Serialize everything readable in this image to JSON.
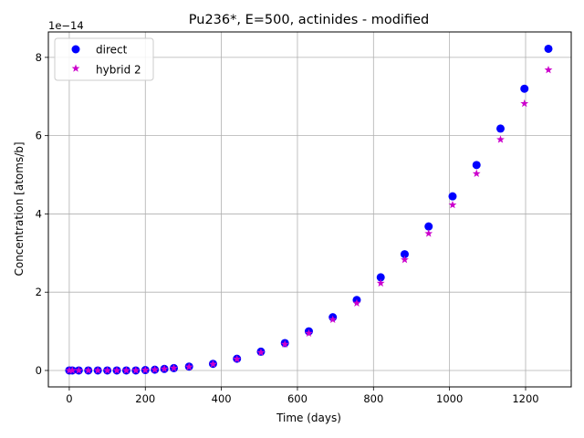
{
  "chart_data": {
    "type": "scatter",
    "title": "Pu236*, E=500, actinides - modified",
    "xlabel": "Time (days)",
    "ylabel": "Concentration [atoms/b]",
    "y_offset_label": "1e−14",
    "xlim": [
      -55,
      1320
    ],
    "ylim": [
      -0.42,
      8.65
    ],
    "y_scale_factor": 1e-14,
    "xticks": [
      0,
      200,
      400,
      600,
      800,
      1000,
      1200
    ],
    "yticks": [
      0,
      2,
      4,
      6,
      8
    ],
    "grid": true,
    "legend_position": "upper left",
    "series": [
      {
        "name": "direct",
        "marker": "circle",
        "color": "#0000ff",
        "x": [
          0,
          8,
          25,
          50,
          75,
          100,
          125,
          150,
          175,
          200,
          225,
          250,
          275,
          315,
          378,
          441,
          504,
          567,
          630,
          693,
          756,
          819,
          882,
          945,
          1008,
          1071,
          1134,
          1197,
          1260
        ],
        "y": [
          0,
          0,
          0,
          0,
          0,
          0,
          0,
          0,
          0,
          0.01,
          0.02,
          0.04,
          0.06,
          0.1,
          0.17,
          0.3,
          0.48,
          0.7,
          1.0,
          1.36,
          1.8,
          2.38,
          2.97,
          3.68,
          4.45,
          5.25,
          6.18,
          7.2,
          8.22
        ]
      },
      {
        "name": "hybrid 2",
        "marker": "star",
        "color": "#cc00cc",
        "x": [
          0,
          8,
          25,
          50,
          75,
          100,
          125,
          150,
          175,
          200,
          225,
          250,
          275,
          315,
          378,
          441,
          504,
          567,
          630,
          693,
          756,
          819,
          882,
          945,
          1008,
          1071,
          1134,
          1197,
          1260
        ],
        "y": [
          0,
          0,
          0,
          0,
          0,
          0,
          0,
          0,
          0,
          0.01,
          0.02,
          0.04,
          0.06,
          0.09,
          0.16,
          0.29,
          0.46,
          0.67,
          0.95,
          1.3,
          1.72,
          2.23,
          2.83,
          3.5,
          4.23,
          5.03,
          5.9,
          6.82,
          7.68
        ]
      }
    ]
  }
}
